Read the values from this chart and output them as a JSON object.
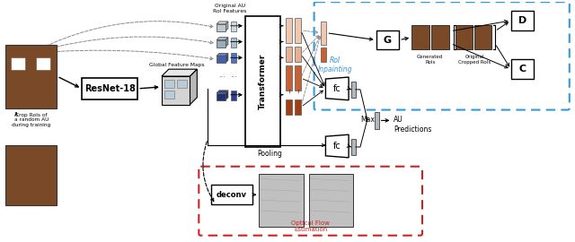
{
  "bg_color": "#ffffff",
  "resnet_label": "ResNet-18",
  "global_feat_label": "Global Feature Maps",
  "transformer_label": "Transformer",
  "roi_inpainting_label": "RoI\nInpainting",
  "optical_flow_label": "Optical Flow\nEstimation",
  "deconv_label": "deconv",
  "G_label": "G",
  "D_label": "D",
  "C_label": "C",
  "fc_label": "fc",
  "max_label": "Max",
  "au_pred_label": "AU\nPredictions",
  "pooling_label": "Pooling",
  "original_au_label": "Original AU\nRoI Features",
  "generated_rois_label": "Generated\nRoIs",
  "original_cropped_label": "Original\nCropped RoIs",
  "crop_rois_label": "Crop RoIs of\na random AU\nduring training"
}
